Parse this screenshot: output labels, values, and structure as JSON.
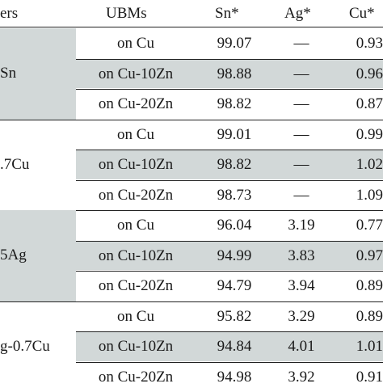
{
  "headers": {
    "solders": "ers",
    "ubms": "UBMs",
    "sn": "Sn*",
    "ag": "Ag*",
    "cu": "Cu*"
  },
  "groups": [
    {
      "solder": "Sn",
      "rows": [
        {
          "ubm": "on Cu",
          "sn": "99.07",
          "ag": "—",
          "cu": "0.93"
        },
        {
          "ubm": "on Cu-10Zn",
          "sn": "98.88",
          "ag": "—",
          "cu": "0.96"
        },
        {
          "ubm": "on Cu-20Zn",
          "sn": "98.82",
          "ag": "—",
          "cu": "0.87"
        }
      ]
    },
    {
      "solder": ".7Cu",
      "rows": [
        {
          "ubm": "on Cu",
          "sn": "99.01",
          "ag": "—",
          "cu": "0.99"
        },
        {
          "ubm": "on Cu-10Zn",
          "sn": "98.82",
          "ag": "—",
          "cu": "1.02"
        },
        {
          "ubm": "on Cu-20Zn",
          "sn": "98.73",
          "ag": "—",
          "cu": "1.09"
        }
      ]
    },
    {
      "solder": "5Ag",
      "rows": [
        {
          "ubm": "on Cu",
          "sn": "96.04",
          "ag": "3.19",
          "cu": "0.77"
        },
        {
          "ubm": "on Cu-10Zn",
          "sn": "94.99",
          "ag": "3.83",
          "cu": "0.97"
        },
        {
          "ubm": "on Cu-20Zn",
          "sn": "94.79",
          "ag": "3.94",
          "cu": "0.89"
        }
      ]
    },
    {
      "solder": "g-0.7Cu",
      "rows": [
        {
          "ubm": "on Cu",
          "sn": "95.82",
          "ag": "3.29",
          "cu": "0.89"
        },
        {
          "ubm": "on Cu-10Zn",
          "sn": "94.84",
          "ag": "4.01",
          "cu": "1.01"
        },
        {
          "ubm": "on Cu-20Zn",
          "sn": "94.98",
          "ag": "3.92",
          "cu": "0.91"
        }
      ]
    }
  ]
}
